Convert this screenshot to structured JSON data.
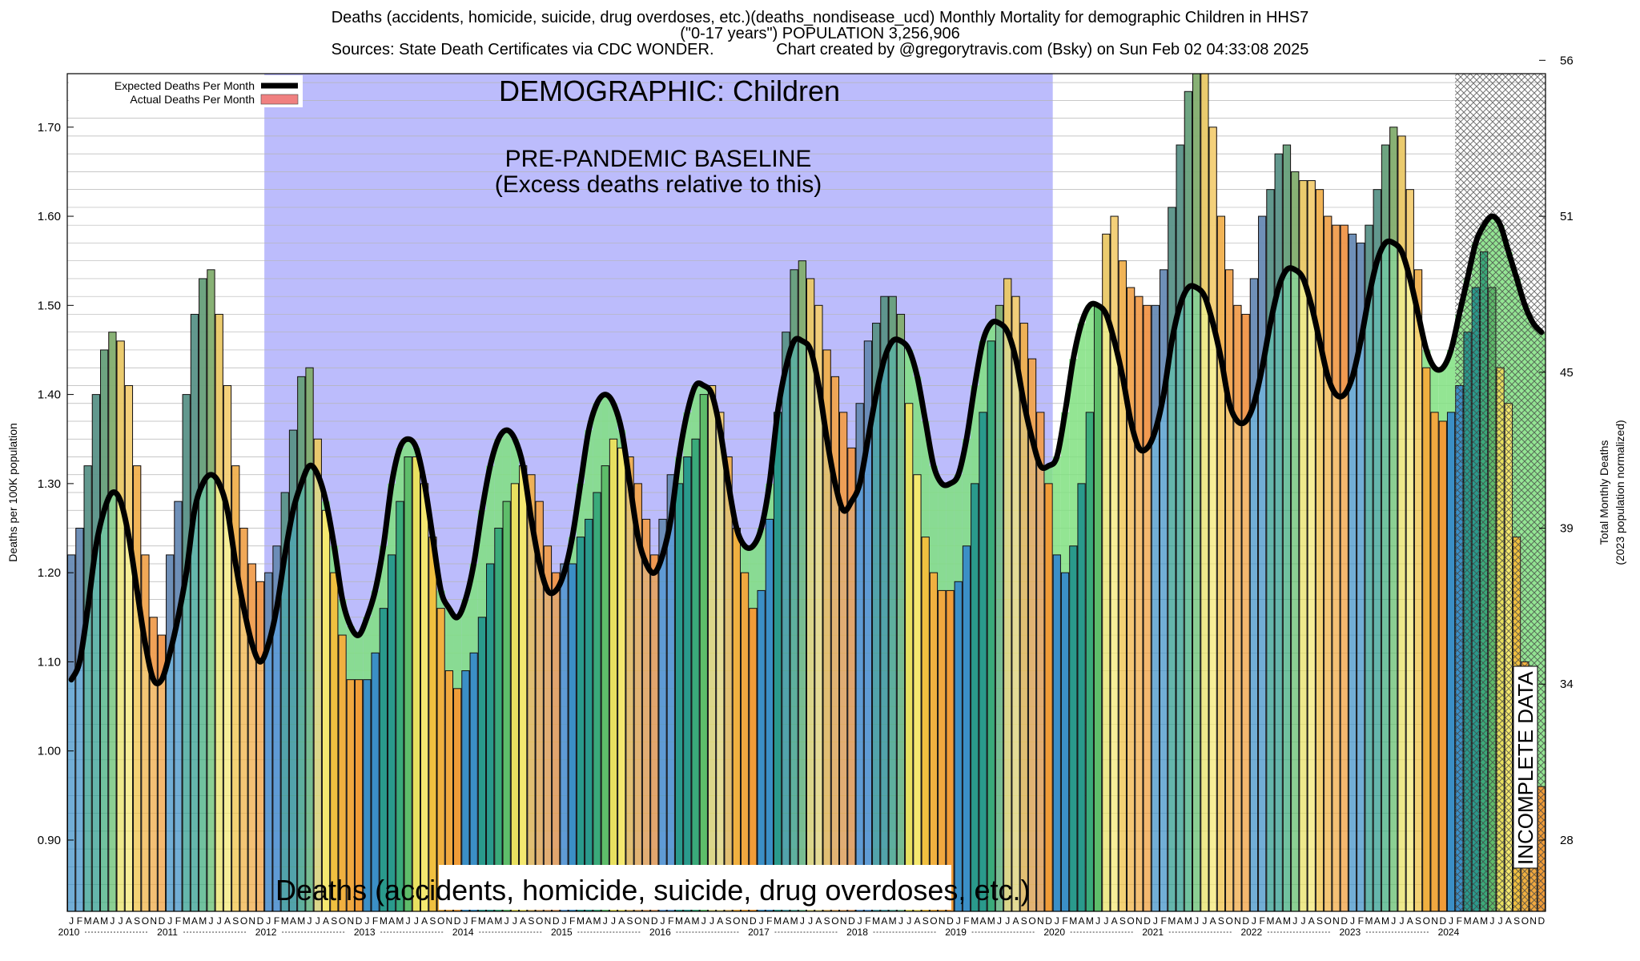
{
  "title": {
    "line1": "Deaths (accidents, homicide, suicide, drug overdoses, etc.)(deaths_nondisease_ucd) Monthly Mortality for demographic Children in HHS7",
    "line2": "(\"0-17 years\") POPULATION 3,256,906",
    "line3": "Sources: State Death Certificates via CDC WONDER.              Chart created by @gregorytravis.com (Bsky) on Sun Feb 02 04:33:08 2025"
  },
  "chart_data": {
    "type": "bar",
    "ylabel": "Deaths per 100K population",
    "y2label_line1": "Total Monthly Deaths",
    "y2label_line2": "(2023 population normalized)",
    "ylim": [
      0.82,
      1.76
    ],
    "yticks": [
      "0.90",
      "1.00",
      "1.10",
      "1.20",
      "1.30",
      "1.40",
      "1.50",
      "1.60",
      "1.70"
    ],
    "y2ticks": [
      "28",
      "34",
      "39",
      "45",
      "51",
      "56"
    ],
    "y2tick_values": [
      0.9,
      1.075,
      1.25,
      1.425,
      1.6,
      1.775
    ],
    "legend": {
      "expected": "Expected Deaths Per Month",
      "actual": "Actual Deaths Per Month",
      "position": "top-left"
    },
    "annotations": {
      "demographic": "DEMOGRAPHIC: Children",
      "baseline_line1": "PRE-PANDEMIC BASELINE",
      "baseline_line2": "(Excess deaths relative to this)",
      "bottom_title": "Deaths (accidents, homicide, suicide, drug overdoses, etc.)",
      "incomplete": "INCOMPLETE DATA"
    },
    "baseline_period": {
      "start": "2012-01",
      "end": "2019-12"
    },
    "incomplete_period": {
      "start": "2024-02",
      "end": "2024-12"
    },
    "month_letters": [
      "J",
      "F",
      "M",
      "A",
      "M",
      "J",
      "J",
      "A",
      "S",
      "O",
      "N",
      "D"
    ],
    "years": [
      "2010",
      "2011",
      "2012",
      "2013",
      "2014",
      "2015",
      "2016",
      "2017",
      "2018",
      "2019",
      "2020",
      "2021",
      "2022",
      "2023",
      "2024"
    ],
    "months_x_start": "2010-01",
    "actual": [
      1.22,
      1.25,
      1.32,
      1.4,
      1.45,
      1.47,
      1.46,
      1.41,
      1.32,
      1.22,
      1.15,
      1.13,
      1.22,
      1.28,
      1.4,
      1.49,
      1.53,
      1.54,
      1.49,
      1.41,
      1.32,
      1.25,
      1.21,
      1.19,
      1.2,
      1.23,
      1.29,
      1.36,
      1.42,
      1.43,
      1.35,
      1.27,
      1.2,
      1.13,
      1.08,
      1.08,
      1.08,
      1.11,
      1.16,
      1.22,
      1.28,
      1.33,
      1.33,
      1.3,
      1.24,
      1.16,
      1.09,
      1.07,
      1.09,
      1.11,
      1.15,
      1.21,
      1.25,
      1.28,
      1.3,
      1.32,
      1.31,
      1.28,
      1.23,
      1.2,
      1.21,
      1.21,
      1.24,
      1.26,
      1.29,
      1.32,
      1.35,
      1.34,
      1.33,
      1.3,
      1.26,
      1.22,
      1.26,
      1.31,
      1.3,
      1.33,
      1.35,
      1.4,
      1.41,
      1.38,
      1.33,
      1.25,
      1.2,
      1.16,
      1.18,
      1.26,
      1.38,
      1.47,
      1.54,
      1.55,
      1.53,
      1.5,
      1.45,
      1.42,
      1.38,
      1.34,
      1.39,
      1.46,
      1.48,
      1.51,
      1.51,
      1.49,
      1.39,
      1.31,
      1.24,
      1.2,
      1.18,
      1.18,
      1.19,
      1.23,
      1.3,
      1.38,
      1.46,
      1.5,
      1.53,
      1.51,
      1.48,
      1.44,
      1.38,
      1.3,
      1.22,
      1.2,
      1.23,
      1.3,
      1.38,
      1.5,
      1.58,
      1.6,
      1.55,
      1.52,
      1.51,
      1.5,
      1.5,
      1.54,
      1.61,
      1.68,
      1.74,
      1.77,
      1.76,
      1.7,
      1.6,
      1.54,
      1.5,
      1.49,
      1.53,
      1.6,
      1.63,
      1.67,
      1.68,
      1.65,
      1.64,
      1.64,
      1.63,
      1.6,
      1.59,
      1.59,
      1.58,
      1.57,
      1.59,
      1.63,
      1.68,
      1.7,
      1.69,
      1.63,
      1.54,
      1.43,
      1.38,
      1.37,
      1.38,
      1.41,
      1.47,
      1.52,
      1.56,
      1.52,
      1.43,
      1.39,
      1.24,
      1.1,
      1.01,
      0.96
    ],
    "expected": [
      1.08,
      1.1,
      1.16,
      1.23,
      1.27,
      1.29,
      1.28,
      1.24,
      1.18,
      1.12,
      1.08,
      1.08,
      1.11,
      1.15,
      1.2,
      1.27,
      1.3,
      1.31,
      1.3,
      1.27,
      1.21,
      1.16,
      1.12,
      1.1,
      1.12,
      1.16,
      1.22,
      1.27,
      1.3,
      1.32,
      1.31,
      1.28,
      1.23,
      1.17,
      1.14,
      1.13,
      1.15,
      1.18,
      1.23,
      1.3,
      1.34,
      1.35,
      1.34,
      1.3,
      1.24,
      1.18,
      1.16,
      1.15,
      1.17,
      1.21,
      1.27,
      1.32,
      1.35,
      1.36,
      1.35,
      1.32,
      1.26,
      1.21,
      1.18,
      1.18,
      1.2,
      1.24,
      1.3,
      1.36,
      1.39,
      1.4,
      1.39,
      1.36,
      1.3,
      1.24,
      1.21,
      1.2,
      1.22,
      1.26,
      1.33,
      1.38,
      1.41,
      1.41,
      1.4,
      1.36,
      1.3,
      1.25,
      1.23,
      1.23,
      1.25,
      1.3,
      1.38,
      1.43,
      1.46,
      1.46,
      1.45,
      1.41,
      1.35,
      1.3,
      1.27,
      1.28,
      1.3,
      1.35,
      1.4,
      1.44,
      1.46,
      1.46,
      1.45,
      1.42,
      1.37,
      1.32,
      1.3,
      1.3,
      1.31,
      1.35,
      1.41,
      1.46,
      1.48,
      1.48,
      1.47,
      1.44,
      1.39,
      1.35,
      1.32,
      1.32,
      1.33,
      1.38,
      1.44,
      1.48,
      1.5,
      1.5,
      1.49,
      1.46,
      1.42,
      1.37,
      1.34,
      1.34,
      1.36,
      1.4,
      1.46,
      1.5,
      1.52,
      1.52,
      1.51,
      1.48,
      1.44,
      1.39,
      1.37,
      1.37,
      1.39,
      1.43,
      1.48,
      1.52,
      1.54,
      1.54,
      1.53,
      1.5,
      1.46,
      1.42,
      1.4,
      1.4,
      1.42,
      1.46,
      1.51,
      1.55,
      1.57,
      1.57,
      1.56,
      1.53,
      1.49,
      1.45,
      1.43,
      1.43,
      1.45,
      1.49,
      1.53,
      1.57,
      1.59,
      1.6,
      1.59,
      1.56,
      1.53,
      1.5,
      1.48,
      1.47
    ],
    "colors": {
      "baseline_region": "#bcbcfc",
      "incomplete_hatch": "#333333",
      "expected_line": "#000000",
      "excess_fill": "#f08080",
      "deficit_fill": "#80e080",
      "month_colors": [
        "#3b8fc6",
        "#3b8fc6",
        "#2a9a8c",
        "#2a9a8c",
        "#3aaa7a",
        "#5ebd6a",
        "#e8e060",
        "#f4e870",
        "#f0c040",
        "#f0b040",
        "#f0a840",
        "#f09c38"
      ]
    }
  }
}
